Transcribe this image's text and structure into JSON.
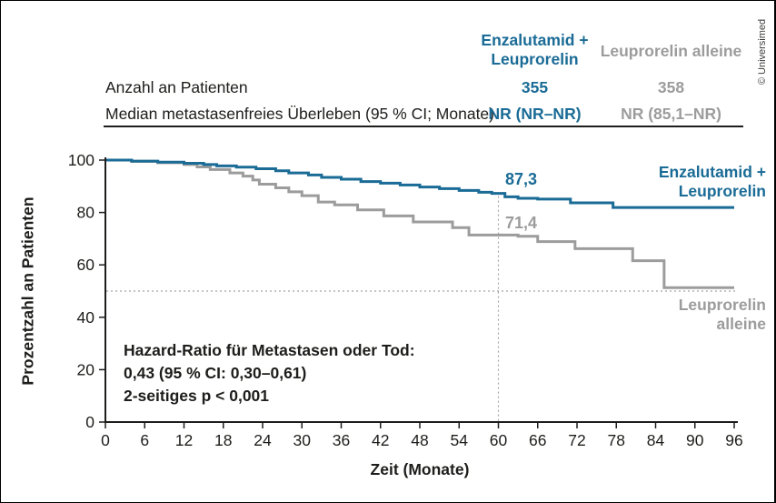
{
  "credit": "© Universimed",
  "colors": {
    "enzalutamid_blue": "#1a6b96",
    "leuprorelin_gray": "#9c9c9c",
    "text": "#1d1d1b"
  },
  "table": {
    "col1_header_lines": [
      "Enzalutamid +",
      "Leuprorelin"
    ],
    "col2_header": "Leuprorelin alleine",
    "rows": [
      {
        "label": "Anzahl an Patienten",
        "enza": "355",
        "leup": "358"
      },
      {
        "label": "Median metastasenfreies Überleben (95 % CI; Monate)",
        "enza": "NR (NR–NR)",
        "leup": "NR (85,1–NR)"
      }
    ]
  },
  "hazard": {
    "line1": "Hazard-Ratio für Metastasen oder Tod:",
    "line2": "0,43 (95 % CI: 0,30–0,61)",
    "line3": "2-seitiges p < 0,001"
  },
  "chart_data": {
    "type": "line",
    "subtype": "kaplan-meier-step",
    "title": "",
    "xlabel": "Zeit (Monate)",
    "ylabel": "Prozentzahl an Patienten",
    "xlim": [
      0,
      96
    ],
    "ylim": [
      0,
      100
    ],
    "xticks": [
      0,
      6,
      12,
      18,
      24,
      30,
      36,
      42,
      48,
      54,
      60,
      66,
      72,
      78,
      84,
      90,
      96
    ],
    "yticks": [
      0,
      20,
      40,
      60,
      80,
      100
    ],
    "grid": false,
    "legend_position": "inline-right",
    "reference_lines": {
      "vertical_x": 60,
      "horizontal_y": 50
    },
    "series": [
      {
        "name": "Enzalutamid + Leuprorelin",
        "label_lines": [
          "Enzalutamid +",
          "Leuprorelin"
        ],
        "color": "#1a6b96",
        "value_at_60": "87,3",
        "points": [
          [
            0,
            100
          ],
          [
            4,
            99.6
          ],
          [
            8,
            99.2
          ],
          [
            12,
            98.8
          ],
          [
            15,
            98.3
          ],
          [
            17,
            97.8
          ],
          [
            20,
            97.3
          ],
          [
            23,
            96.7
          ],
          [
            26,
            95.9
          ],
          [
            28,
            95.1
          ],
          [
            31,
            94.3
          ],
          [
            33,
            93.4
          ],
          [
            36,
            92.7
          ],
          [
            39,
            91.8
          ],
          [
            42,
            91.2
          ],
          [
            45,
            90.5
          ],
          [
            48,
            89.7
          ],
          [
            51,
            89.1
          ],
          [
            54,
            88.4
          ],
          [
            57,
            87.7
          ],
          [
            59,
            87.3
          ],
          [
            61,
            86.0
          ],
          [
            63,
            85.4
          ],
          [
            66,
            85.1
          ],
          [
            71,
            83.7
          ],
          [
            77.5,
            81.9
          ],
          [
            96,
            81.9
          ]
        ]
      },
      {
        "name": "Leuprorelin alleine",
        "label_lines": [
          "Leuprorelin",
          "alleine"
        ],
        "color": "#9c9c9c",
        "value_at_60": "71,4",
        "points": [
          [
            0,
            100
          ],
          [
            4,
            99.5
          ],
          [
            8,
            99.0
          ],
          [
            12,
            98.3
          ],
          [
            14,
            97.4
          ],
          [
            16,
            96.4
          ],
          [
            19,
            95.1
          ],
          [
            21,
            93.9
          ],
          [
            22.5,
            92.4
          ],
          [
            23.5,
            90.8
          ],
          [
            26,
            89.4
          ],
          [
            28,
            87.9
          ],
          [
            30,
            86.4
          ],
          [
            32.5,
            84.0
          ],
          [
            35,
            82.9
          ],
          [
            38.5,
            81.0
          ],
          [
            42.5,
            78.7
          ],
          [
            47,
            76.4
          ],
          [
            53,
            74.2
          ],
          [
            55.5,
            71.4
          ],
          [
            63,
            70.9
          ],
          [
            66,
            68.9
          ],
          [
            71.7,
            66.2
          ],
          [
            80.5,
            61.6
          ],
          [
            85.3,
            51.3
          ],
          [
            96,
            51.3
          ]
        ]
      }
    ]
  }
}
